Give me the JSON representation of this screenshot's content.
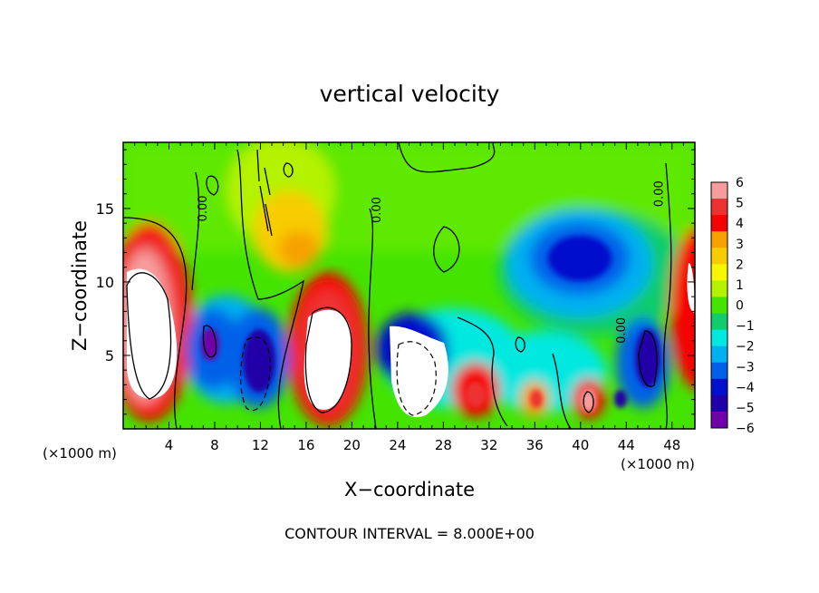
{
  "chart_data": {
    "type": "heatmap",
    "title": "vertical velocity",
    "xlabel": "X−coordinate",
    "ylabel": "Z−coordinate",
    "x_unit_left": "(×1000 m)",
    "x_unit_right": "(×1000 m)",
    "footer": "CONTOUR INTERVAL = 8.000E+00",
    "xlim": [
      0,
      50
    ],
    "ylim": [
      0,
      19.5
    ],
    "x_ticks": [
      4,
      8,
      12,
      16,
      20,
      24,
      28,
      32,
      36,
      40,
      44,
      48
    ],
    "y_ticks": [
      5,
      10,
      15
    ],
    "contour_labels": [
      {
        "text": "0.00",
        "x": 7.3,
        "y": 15.0
      },
      {
        "text": "0.00",
        "x": 22.5,
        "y": 14.9
      },
      {
        "text": "0.00",
        "x": 43.9,
        "y": 6.7
      },
      {
        "text": "0.00",
        "x": 47.2,
        "y": 16.0
      }
    ],
    "colorbar": {
      "min": -6,
      "max": 6,
      "labels": [
        "6",
        "5",
        "4",
        "3",
        "2",
        "1",
        "0",
        "−1",
        "−2",
        "−3",
        "−4",
        "−5",
        "−6"
      ],
      "colors": [
        "#f79c9c",
        "#ee3030",
        "#f70000",
        "#f7a000",
        "#f7cc00",
        "#f7f700",
        "#b4f200",
        "#44e400",
        "#10cc6c",
        "#00e8e0",
        "#00b0f0",
        "#0060e8",
        "#0010cc",
        "#2000a8",
        "#7000a8"
      ]
    },
    "features": [
      {
        "kind": "updraft",
        "x": 1.8,
        "y": 6.5,
        "peak": 6
      },
      {
        "kind": "updraft",
        "x": 18.0,
        "y": 6.0,
        "peak": 6
      },
      {
        "kind": "updraft",
        "x": 27.0,
        "y": 4.0,
        "peak": 6
      },
      {
        "kind": "updraft",
        "x": 49.5,
        "y": 9.0,
        "peak": 6
      },
      {
        "kind": "downdraft",
        "x": 7.5,
        "y": 5.5,
        "peak": -6
      },
      {
        "kind": "downdraft",
        "x": 12.0,
        "y": 4.0,
        "peak": -6
      },
      {
        "kind": "downdraft",
        "x": 44.8,
        "y": 5.0,
        "peak": -6
      },
      {
        "kind": "downdraft",
        "x": 40.5,
        "y": 12.0,
        "peak": -5
      },
      {
        "kind": "updraft",
        "x": 15.8,
        "y": 12.3,
        "peak": 3
      },
      {
        "kind": "updraft",
        "x": 30.2,
        "y": 2.2,
        "peak": 5
      },
      {
        "kind": "updraft",
        "x": 36.0,
        "y": 2.0,
        "peak": 4
      },
      {
        "kind": "updraft",
        "x": 40.2,
        "y": 1.8,
        "peak": 6
      }
    ]
  }
}
